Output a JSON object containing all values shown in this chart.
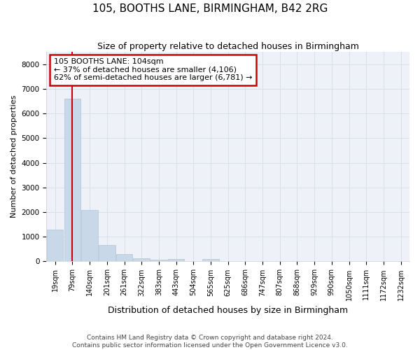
{
  "title": "105, BOOTHS LANE, BIRMINGHAM, B42 2RG",
  "subtitle": "Size of property relative to detached houses in Birmingham",
  "xlabel": "Distribution of detached houses by size in Birmingham",
  "ylabel": "Number of detached properties",
  "footer_line1": "Contains HM Land Registry data © Crown copyright and database right 2024.",
  "footer_line2": "Contains public sector information licensed under the Open Government Licence v3.0.",
  "bin_labels": [
    "19sqm",
    "79sqm",
    "140sqm",
    "201sqm",
    "261sqm",
    "322sqm",
    "383sqm",
    "443sqm",
    "504sqm",
    "565sqm",
    "625sqm",
    "686sqm",
    "747sqm",
    "807sqm",
    "868sqm",
    "929sqm",
    "990sqm",
    "1050sqm",
    "1111sqm",
    "1172sqm",
    "1232sqm"
  ],
  "bar_heights": [
    1300,
    6600,
    2100,
    660,
    300,
    130,
    80,
    95,
    0,
    100,
    0,
    0,
    0,
    0,
    0,
    0,
    0,
    0,
    0,
    0,
    0
  ],
  "bar_color": "#c8d8e8",
  "bar_edge_color": "#b0c4d8",
  "grid_color": "#d8e0e8",
  "property_line_x": 1.0,
  "property_line_color": "#cc0000",
  "annotation_line1": "105 BOOTHS LANE: 104sqm",
  "annotation_line2": "← 37% of detached houses are smaller (4,106)",
  "annotation_line3": "62% of semi-detached houses are larger (6,781) →",
  "annotation_box_color": "#ffffff",
  "annotation_border_color": "#cc0000",
  "plot_bg_color": "#eef2f8",
  "fig_bg_color": "#ffffff",
  "ylim": [
    0,
    8500
  ],
  "yticks": [
    0,
    1000,
    2000,
    3000,
    4000,
    5000,
    6000,
    7000,
    8000
  ],
  "title_fontsize": 11,
  "subtitle_fontsize": 9,
  "ylabel_fontsize": 8,
  "xlabel_fontsize": 9,
  "tick_fontsize": 7,
  "footer_fontsize": 6.5
}
